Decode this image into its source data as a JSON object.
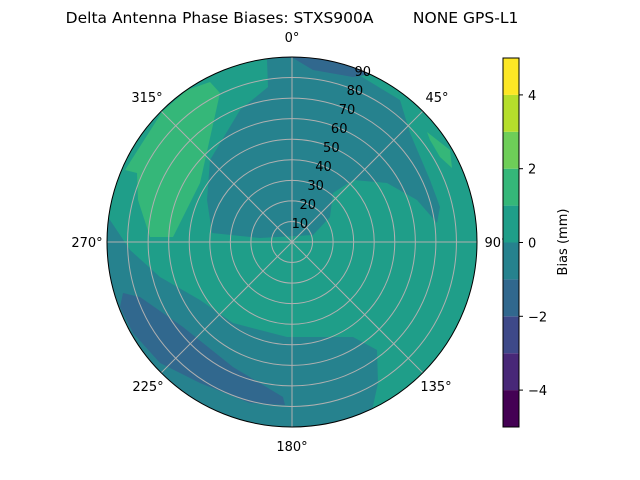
{
  "chart_data": {
    "type": "heatmap",
    "subtype": "polar filled contour",
    "title": "Delta Antenna Phase Biases: STXS900A        NONE GPS-L1",
    "angular_axis": {
      "direction": "clockwise",
      "zero_location": "top",
      "tick_labels": [
        "0°",
        "45°",
        "90°",
        "135°",
        "180°",
        "225°",
        "270°",
        "315°"
      ]
    },
    "radial_axis": {
      "range": [
        0,
        90
      ],
      "tick_labels": [
        "10",
        "20",
        "30",
        "40",
        "50",
        "60",
        "70",
        "80",
        "90"
      ]
    },
    "grid": true,
    "colorbar": {
      "label": "Bias (mm)",
      "range": [
        -5,
        5
      ],
      "levels": [
        -5,
        -4,
        -3,
        -2,
        -1,
        0,
        1,
        2,
        3,
        4,
        5
      ],
      "tick_labels": [
        "−4",
        "−2",
        "0",
        "2",
        "4"
      ],
      "ticks": [
        -4,
        -2,
        0,
        2,
        4
      ],
      "colormap": "viridis",
      "colors": [
        "#440154",
        "#482878",
        "#3e4989",
        "#31688e",
        "#26828e",
        "#1f9e89",
        "#35b779",
        "#6ece58",
        "#b5de2b",
        "#fde725"
      ],
      "placement": "right"
    },
    "regions_present": [
      {
        "range": [
          0,
          1
        ],
        "where": "background / most of the field"
      },
      {
        "range": [
          -1,
          0
        ],
        "where": "north-central band and southern band"
      },
      {
        "range": [
          -2,
          -1
        ],
        "where": "southwest low-elevation band and near north rim"
      },
      {
        "range": [
          1,
          2
        ],
        "where": "northwest low-elevation lobe and small patch near 60°"
      }
    ]
  }
}
